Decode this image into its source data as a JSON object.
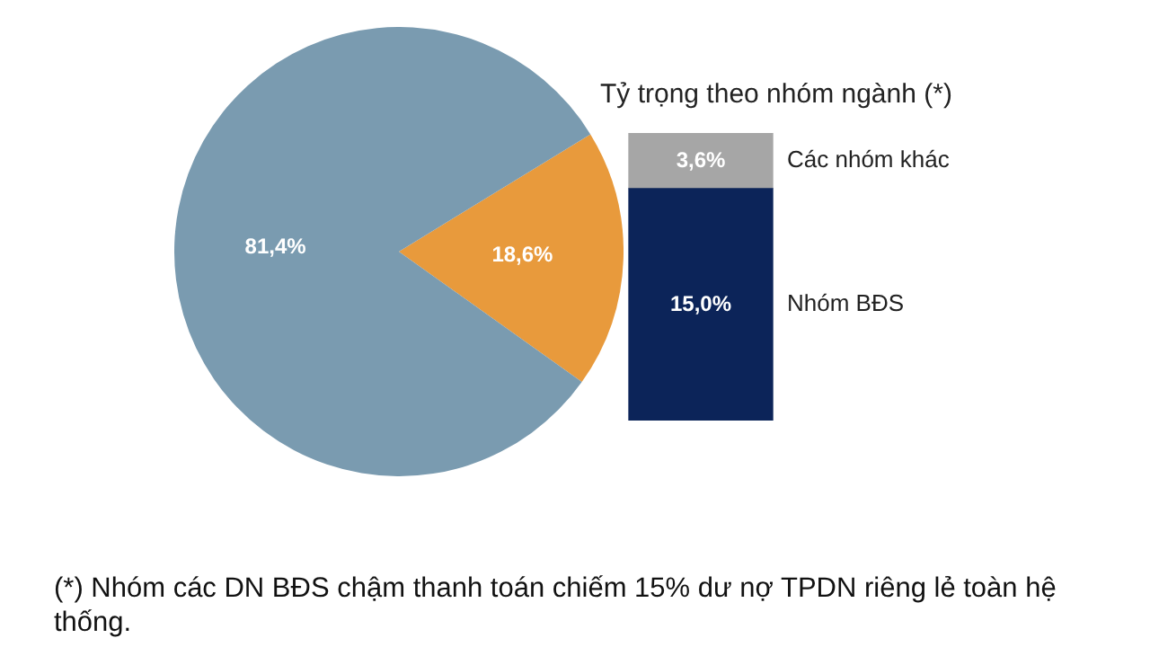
{
  "chart_data": [
    {
      "type": "pie",
      "categories": [
        null,
        null
      ],
      "values": [
        18.6,
        81.4
      ],
      "colors": [
        "#e89a3c",
        "#7a9bb0"
      ],
      "value_labels": [
        "18,6%",
        "81,4%"
      ],
      "legend": false
    },
    {
      "type": "bar",
      "stacked": true,
      "title": "Tỷ trọng theo nhóm ngành (*)",
      "categories": [
        null
      ],
      "series": [
        {
          "name": "Nhóm BĐS",
          "color": "#0c2459",
          "values": [
            15.0
          ],
          "value_labels": [
            "15,0%"
          ]
        },
        {
          "name": "Các nhóm khác",
          "color": "#a6a6a6",
          "values": [
            3.6
          ],
          "value_labels": [
            "3,6%"
          ]
        }
      ],
      "legend": false,
      "annotations": [
        "(*) Nhóm các DN BĐS chậm thanh toán chiếm 15% dư nợ TPDN riêng lẻ toàn hệ thống."
      ]
    }
  ]
}
